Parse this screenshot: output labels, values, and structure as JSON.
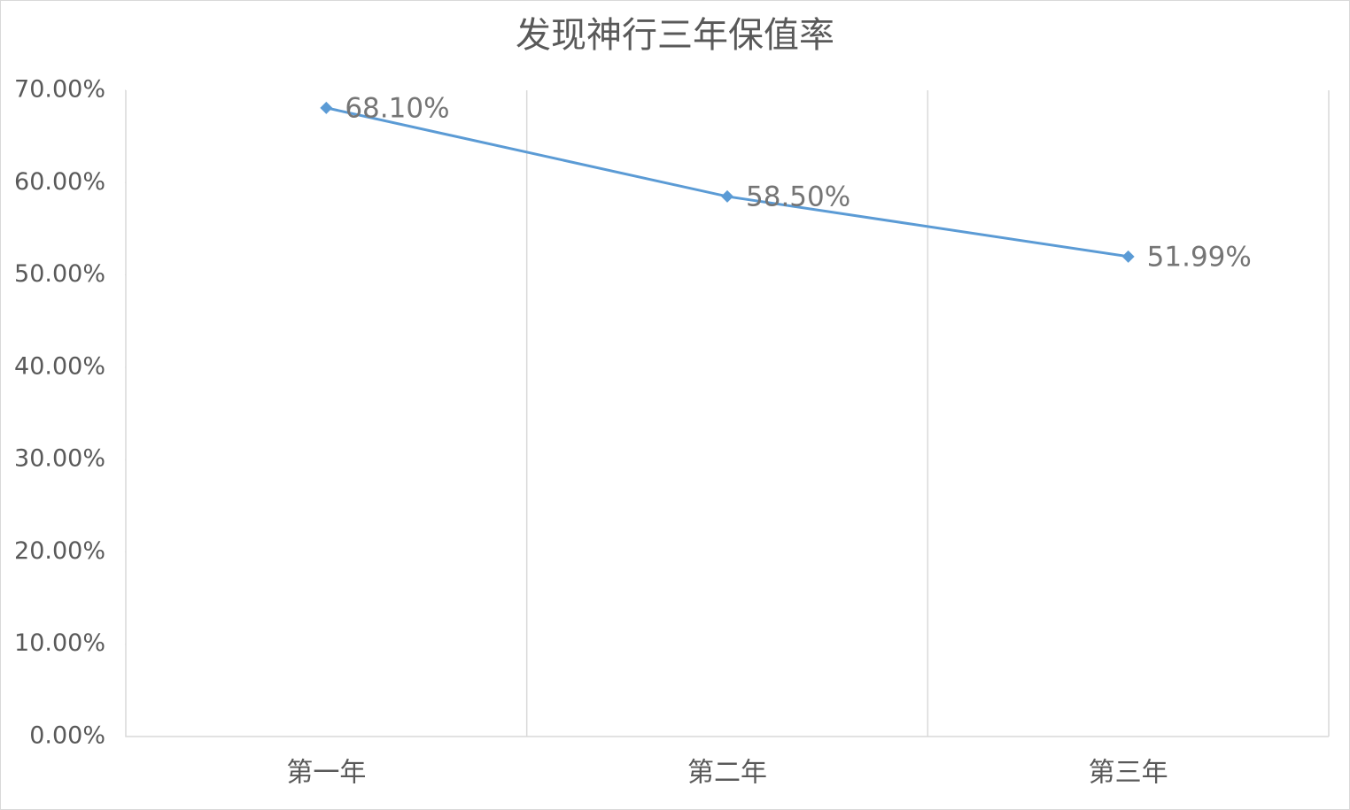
{
  "chart_data": {
    "type": "line",
    "title": "发现神行三年保值率",
    "categories": [
      "第一年",
      "第二年",
      "第三年"
    ],
    "values": [
      68.1,
      58.5,
      51.99
    ],
    "value_labels": [
      "68.10%",
      "58.50%",
      "51.99%"
    ],
    "color": "#5b9bd5",
    "ylim": [
      0,
      70
    ],
    "yticks": [
      {
        "value": 0,
        "label": "0.00%"
      },
      {
        "value": 10,
        "label": "10.00%"
      },
      {
        "value": 20,
        "label": "20.00%"
      },
      {
        "value": 30,
        "label": "30.00%"
      },
      {
        "value": 40,
        "label": "40.00%"
      },
      {
        "value": 50,
        "label": "50.00%"
      },
      {
        "value": 60,
        "label": "60.00%"
      },
      {
        "value": 70,
        "label": "70.00%"
      }
    ]
  }
}
